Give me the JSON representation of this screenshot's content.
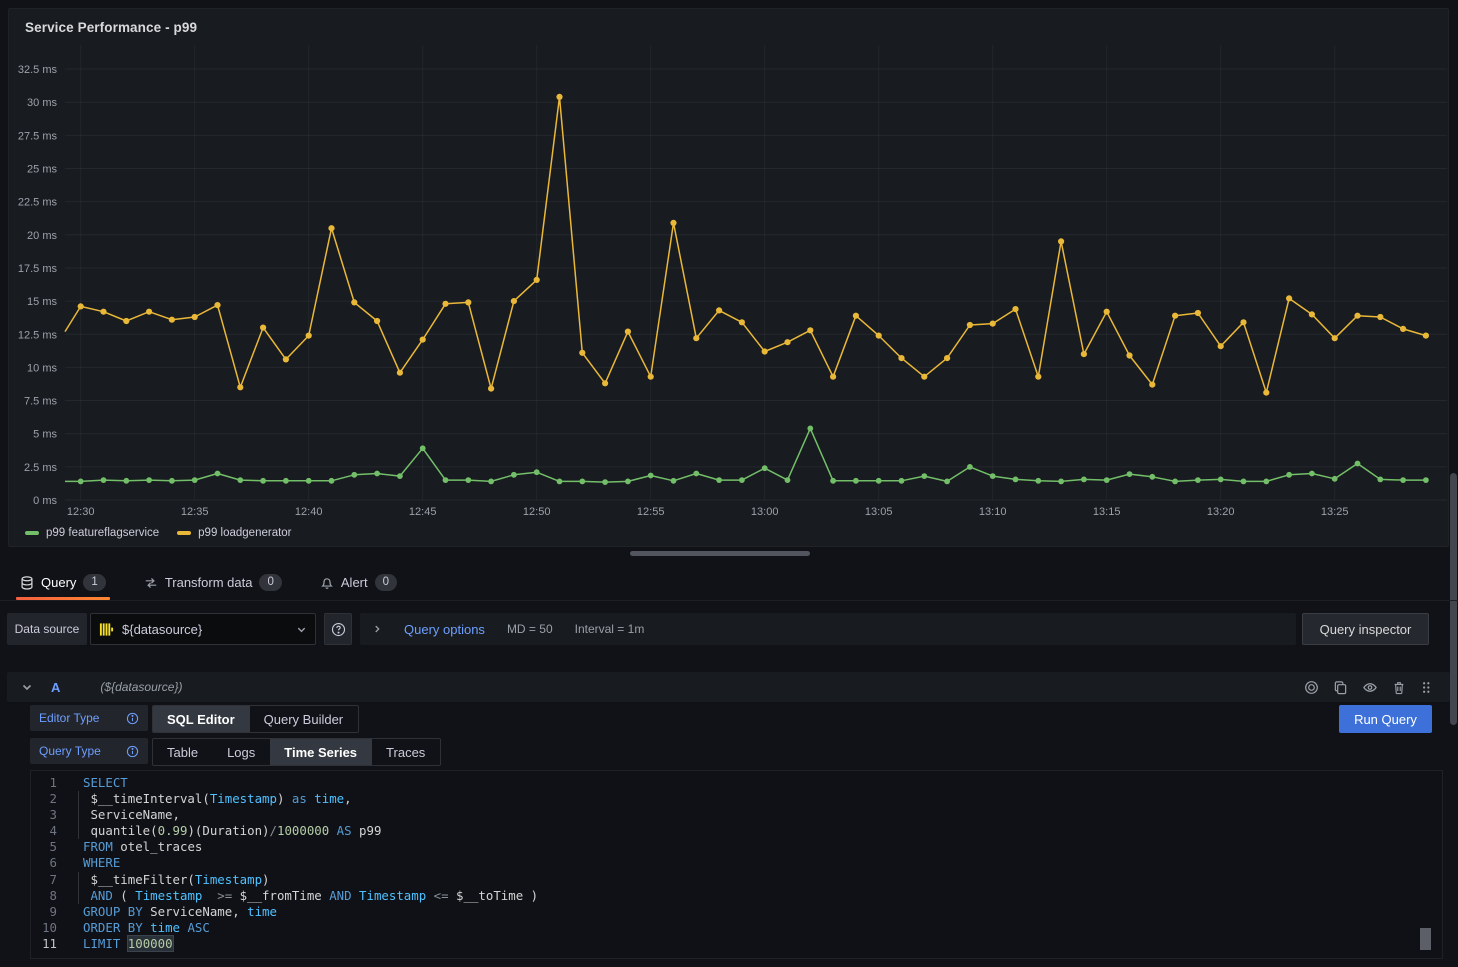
{
  "panel": {
    "title": "Service Performance - p99"
  },
  "chart_data": {
    "type": "line",
    "title": "Service Performance - p99",
    "ylabel_unit": "ms",
    "ylim": [
      0,
      34.3
    ],
    "y_ticks_ms": [
      0,
      2.5,
      5,
      7.5,
      10,
      12.5,
      15,
      17.5,
      20,
      22.5,
      25,
      27.5,
      30,
      32.5
    ],
    "y_tick_labels": [
      "0 ms",
      "2.5 ms",
      "5 ms",
      "7.5 ms",
      "10 ms",
      "12.5 ms",
      "15 ms",
      "17.5 ms",
      "20 ms",
      "22.5 ms",
      "25 ms",
      "27.5 ms",
      "30 ms",
      "32.5 ms"
    ],
    "x_tick_labels": [
      "12:30",
      "12:35",
      "12:40",
      "12:45",
      "12:50",
      "12:55",
      "13:00",
      "13:05",
      "13:10",
      "13:15",
      "13:20",
      "13:25"
    ],
    "x_interval": "1m",
    "legend_position": "bottom",
    "grid": true,
    "series": [
      {
        "name": "p99 featureflagservice",
        "color": "#73BF69",
        "lead_in": 1.4,
        "values": [
          1.4,
          1.5,
          1.45,
          1.5,
          1.45,
          1.5,
          2.0,
          1.5,
          1.45,
          1.45,
          1.45,
          1.45,
          1.9,
          2.0,
          1.8,
          3.9,
          1.5,
          1.5,
          1.4,
          1.9,
          2.1,
          1.4,
          1.4,
          1.35,
          1.4,
          1.85,
          1.45,
          2.0,
          1.5,
          1.5,
          2.4,
          1.5,
          5.4,
          1.45,
          1.45,
          1.45,
          1.45,
          1.8,
          1.4,
          2.5,
          1.8,
          1.55,
          1.45,
          1.4,
          1.55,
          1.5,
          1.95,
          1.75,
          1.4,
          1.5,
          1.55,
          1.4,
          1.4,
          1.9,
          2.0,
          1.6,
          2.75,
          1.55,
          1.5,
          1.5
        ]
      },
      {
        "name": "p99 loadgenerator",
        "color": "#EAB839",
        "lead_in": 12.7,
        "values": [
          14.6,
          14.2,
          13.5,
          14.2,
          13.6,
          13.8,
          14.7,
          8.5,
          13.0,
          10.6,
          12.4,
          20.5,
          14.9,
          13.5,
          9.6,
          12.1,
          14.8,
          14.9,
          8.4,
          15.0,
          16.6,
          30.4,
          11.1,
          8.8,
          12.7,
          9.3,
          20.9,
          12.2,
          14.3,
          13.4,
          11.2,
          11.9,
          12.8,
          9.3,
          13.9,
          12.4,
          10.7,
          9.3,
          10.7,
          13.2,
          13.3,
          14.4,
          9.3,
          19.5,
          11.0,
          14.2,
          10.9,
          8.7,
          13.9,
          14.1,
          11.6,
          13.4,
          8.1,
          15.2,
          14.0,
          12.2,
          13.9,
          13.8,
          12.9,
          12.4
        ]
      }
    ]
  },
  "tabs": [
    {
      "label": "Query",
      "badge": "1",
      "icon": "database-icon",
      "active": true
    },
    {
      "label": "Transform data",
      "badge": "0",
      "icon": "transform-icon",
      "active": false
    },
    {
      "label": "Alert",
      "badge": "0",
      "icon": "bell-icon",
      "active": false
    }
  ],
  "toolbar": {
    "datasource_label": "Data source",
    "datasource_value": "${datasource}",
    "query_options_label": "Query options",
    "md": "MD = 50",
    "interval": "Interval = 1m",
    "query_inspector_label": "Query inspector"
  },
  "query_row": {
    "ref_id": "A",
    "datasource_hint": "(${datasource})"
  },
  "editor": {
    "editor_type_label": "Editor Type",
    "editor_type_options": [
      "SQL Editor",
      "Query Builder"
    ],
    "editor_type_selected": "SQL Editor",
    "query_type_label": "Query Type",
    "query_type_options": [
      "Table",
      "Logs",
      "Time Series",
      "Traces"
    ],
    "query_type_selected": "Time Series",
    "run_query_label": "Run Query",
    "active_line": 11,
    "sql_lines": [
      {
        "n": 1,
        "tokens": [
          [
            "kw",
            "SELECT"
          ]
        ]
      },
      {
        "n": 2,
        "tokens": [
          [
            "id",
            " $__timeInterval("
          ],
          [
            "tp",
            "Timestamp"
          ],
          [
            "id",
            ")"
          ],
          [
            "kw",
            " as"
          ],
          [
            "tp",
            " time"
          ],
          [
            "id",
            ","
          ]
        ]
      },
      {
        "n": 3,
        "tokens": [
          [
            "id",
            " ServiceName,"
          ]
        ]
      },
      {
        "n": 4,
        "tokens": [
          [
            "id",
            " quantile("
          ],
          [
            "num",
            "0.99"
          ],
          [
            "id",
            ")(Duration)"
          ],
          [
            "op",
            "/"
          ],
          [
            "num",
            "1000000"
          ],
          [
            "kw",
            " AS"
          ],
          [
            "id",
            " p99"
          ]
        ]
      },
      {
        "n": 5,
        "tokens": [
          [
            "kw",
            "FROM"
          ],
          [
            "id",
            " otel_traces"
          ]
        ]
      },
      {
        "n": 6,
        "tokens": [
          [
            "kw",
            "WHERE"
          ]
        ]
      },
      {
        "n": 7,
        "tokens": [
          [
            "id",
            " $__timeFilter("
          ],
          [
            "tp",
            "Timestamp"
          ],
          [
            "id",
            ")"
          ]
        ]
      },
      {
        "n": 8,
        "tokens": [
          [
            "kw",
            " AND"
          ],
          [
            "id",
            " ( "
          ],
          [
            "tp",
            "Timestamp"
          ],
          [
            "op",
            "  >="
          ],
          [
            "id",
            " $__fromTime"
          ],
          [
            "kw",
            " AND"
          ],
          [
            "tp",
            " Timestamp"
          ],
          [
            "op",
            " <="
          ],
          [
            "id",
            " $__toTime"
          ],
          [
            "id",
            " )"
          ]
        ]
      },
      {
        "n": 9,
        "tokens": [
          [
            "kw",
            "GROUP BY"
          ],
          [
            "id",
            " ServiceName,"
          ],
          [
            "tp",
            " time"
          ]
        ]
      },
      {
        "n": 10,
        "tokens": [
          [
            "kw",
            "ORDER BY"
          ],
          [
            "tp",
            " time"
          ],
          [
            "kw",
            " ASC"
          ]
        ]
      },
      {
        "n": 11,
        "tokens": [
          [
            "kw",
            "LIMIT"
          ],
          [
            "id",
            " "
          ],
          [
            "numhl",
            "100000"
          ]
        ]
      }
    ]
  }
}
